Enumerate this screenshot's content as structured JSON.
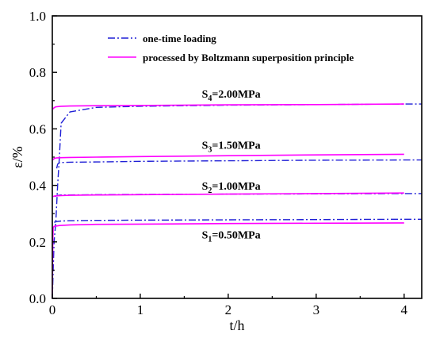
{
  "chart_data": {
    "type": "line",
    "xlabel": "t/h",
    "ylabel": "ε/%",
    "xlim": [
      0,
      4.2
    ],
    "ylim": [
      0,
      1.0
    ],
    "xticks": [
      0,
      1,
      2,
      3,
      4
    ],
    "xtick_labels": [
      "0",
      "1",
      "2",
      "3",
      "4"
    ],
    "yticks": [
      0,
      0.2,
      0.4,
      0.6,
      0.8,
      1.0
    ],
    "ytick_labels": [
      "0.0",
      "0.2",
      "0.4",
      "0.6",
      "0.8",
      "1.0"
    ],
    "grid": false,
    "legend_position": "top-center",
    "series": [
      {
        "name": "one-time loading",
        "color": "#1f1fd6",
        "dash": "dashdot",
        "x": [
          0,
          0.02,
          0.04,
          0.06,
          0.08,
          0.1,
          0.2,
          0.5,
          1,
          2,
          3,
          4,
          4.2
        ],
        "y": [
          0,
          0.2,
          0.27,
          0.4,
          0.5,
          0.62,
          0.66,
          0.676,
          0.68,
          0.684,
          0.686,
          0.688,
          0.688
        ]
      },
      {
        "name": "processed by Boltzmann superposition principle",
        "color": "#ff00ff",
        "dash": "solid",
        "x": [
          0,
          0.005,
          0.01,
          0.02,
          0.04,
          0.08,
          0.2,
          0.5,
          1,
          2,
          3,
          4
        ],
        "y": [
          0,
          0.2,
          0.25,
          0.255,
          0.256,
          0.258,
          0.26,
          0.262,
          0.263,
          0.265,
          0.266,
          0.267
        ]
      },
      {
        "color": "#1f1fd6",
        "dash": "dashdot",
        "x": [
          0.02,
          0.03,
          0.05,
          0.1,
          0.2,
          0.5,
          1,
          2,
          3,
          4,
          4.2
        ],
        "y": [
          0.27,
          0.27,
          0.272,
          0.274,
          0.275,
          0.276,
          0.277,
          0.278,
          0.279,
          0.28,
          0.28
        ]
      },
      {
        "color": "#1f1fd6",
        "dash": "dashdot",
        "x": [
          0.03,
          0.04,
          0.05,
          0.1,
          0.2,
          0.5,
          1,
          2,
          3,
          4,
          4.2
        ],
        "y": [
          0.36,
          0.362,
          0.364,
          0.366,
          0.366,
          0.367,
          0.368,
          0.369,
          0.37,
          0.371,
          0.371
        ]
      },
      {
        "color": "#ff00ff",
        "dash": "solid",
        "x": [
          0.01,
          0.02,
          0.04,
          0.1,
          0.2,
          0.5,
          1,
          2,
          3,
          4
        ],
        "y": [
          0.36,
          0.362,
          0.363,
          0.364,
          0.365,
          0.366,
          0.367,
          0.369,
          0.371,
          0.373
        ]
      },
      {
        "color": "#1f1fd6",
        "dash": "dashdot",
        "x": [
          0.05,
          0.06,
          0.08,
          0.1,
          0.2,
          0.5,
          1,
          2,
          3,
          4,
          4.2
        ],
        "y": [
          0.46,
          0.475,
          0.48,
          0.481,
          0.482,
          0.483,
          0.485,
          0.487,
          0.489,
          0.49,
          0.49
        ]
      },
      {
        "color": "#ff00ff",
        "dash": "solid",
        "x": [
          0.01,
          0.02,
          0.04,
          0.1,
          0.2,
          0.5,
          1,
          2,
          3,
          4
        ],
        "y": [
          0.49,
          0.495,
          0.497,
          0.498,
          0.499,
          0.5,
          0.502,
          0.505,
          0.508,
          0.51
        ]
      },
      {
        "color": "#ff00ff",
        "dash": "solid",
        "x": [
          0.01,
          0.02,
          0.04,
          0.1,
          0.2,
          0.5,
          1,
          2,
          3,
          4
        ],
        "y": [
          0.67,
          0.675,
          0.678,
          0.68,
          0.681,
          0.682,
          0.683,
          0.685,
          0.686,
          0.688
        ]
      }
    ],
    "annotations": [
      {
        "main": "S",
        "sub": "4",
        "rest": "=2.00MPa",
        "x": 1.7,
        "y": 0.71
      },
      {
        "main": "S",
        "sub": "3",
        "rest": "=1.50MPa",
        "x": 1.7,
        "y": 0.53
      },
      {
        "main": "S",
        "sub": "2",
        "rest": "=1.00MPa",
        "x": 1.7,
        "y": 0.385
      },
      {
        "main": "S",
        "sub": "1",
        "rest": "=0.50MPa",
        "x": 1.7,
        "y": 0.212
      }
    ]
  }
}
